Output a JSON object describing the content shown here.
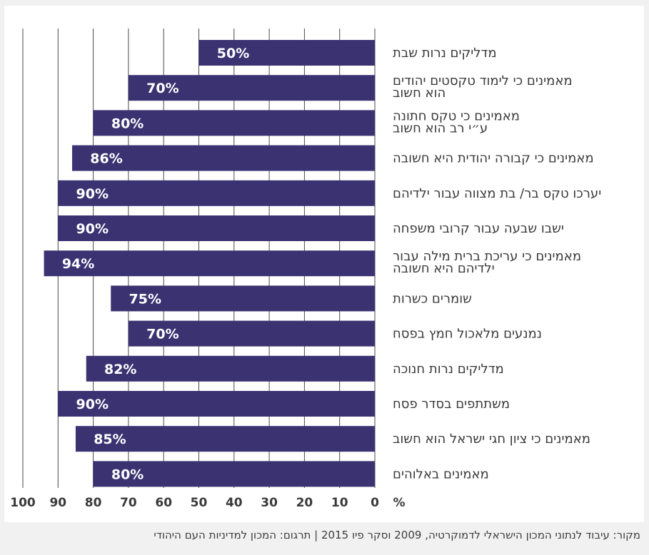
{
  "chart_data": {
    "type": "bar",
    "orientation": "horizontal",
    "direction": "right-to-left",
    "categories": [
      [
        "מדליקים נרות שבת"
      ],
      [
        "מאמינים כי לימוד טקסטים יהודים",
        "הוא חשוב"
      ],
      [
        "מאמינים כי טקס חתונה",
        "ע״י רב הוא חשוב"
      ],
      [
        "מאמינים כי קבורה יהודית היא חשובה"
      ],
      [
        "יערכו טקס בר/ בת מצווה עבור ילדיהם"
      ],
      [
        "ישבו שבעה עבור קרובי משפחה"
      ],
      [
        "מאמינים כי עריכת ברית מילה עבור",
        "ילדיהם היא חשובה"
      ],
      [
        "שומרים כשרות"
      ],
      [
        "נמנעים מלאכול חמץ בפסח"
      ],
      [
        "מדליקים נרות חנוכה"
      ],
      [
        "משתתפים  בסדר פסח"
      ],
      [
        "מאמינים כי ציון חגי ישראל הוא חשוב"
      ],
      [
        "מאמינים באלוהים"
      ]
    ],
    "values": [
      50,
      70,
      80,
      86,
      90,
      90,
      94,
      75,
      70,
      82,
      90,
      85,
      80
    ],
    "value_labels": [
      "50%",
      "70%",
      "80%",
      "86%",
      "90%",
      "90%",
      "94%",
      "75%",
      "70%",
      "82%",
      "90%",
      "85%",
      "80%"
    ],
    "xlim": [
      0,
      100
    ],
    "x_ticks": [
      0,
      10,
      20,
      30,
      40,
      50,
      60,
      70,
      80,
      90,
      100
    ],
    "x_unit": "%",
    "grid": true,
    "bar_color": "#3b3272",
    "grid_color": "#4a4a4a",
    "label_color": "#3a3a3a",
    "source": "מקור: עיבוד לנתוני המכון הישראלי לדמוקרטיה, 2009 וסקר פיו 2015 | תרגום: המכון למדיניות העם היהודי"
  }
}
